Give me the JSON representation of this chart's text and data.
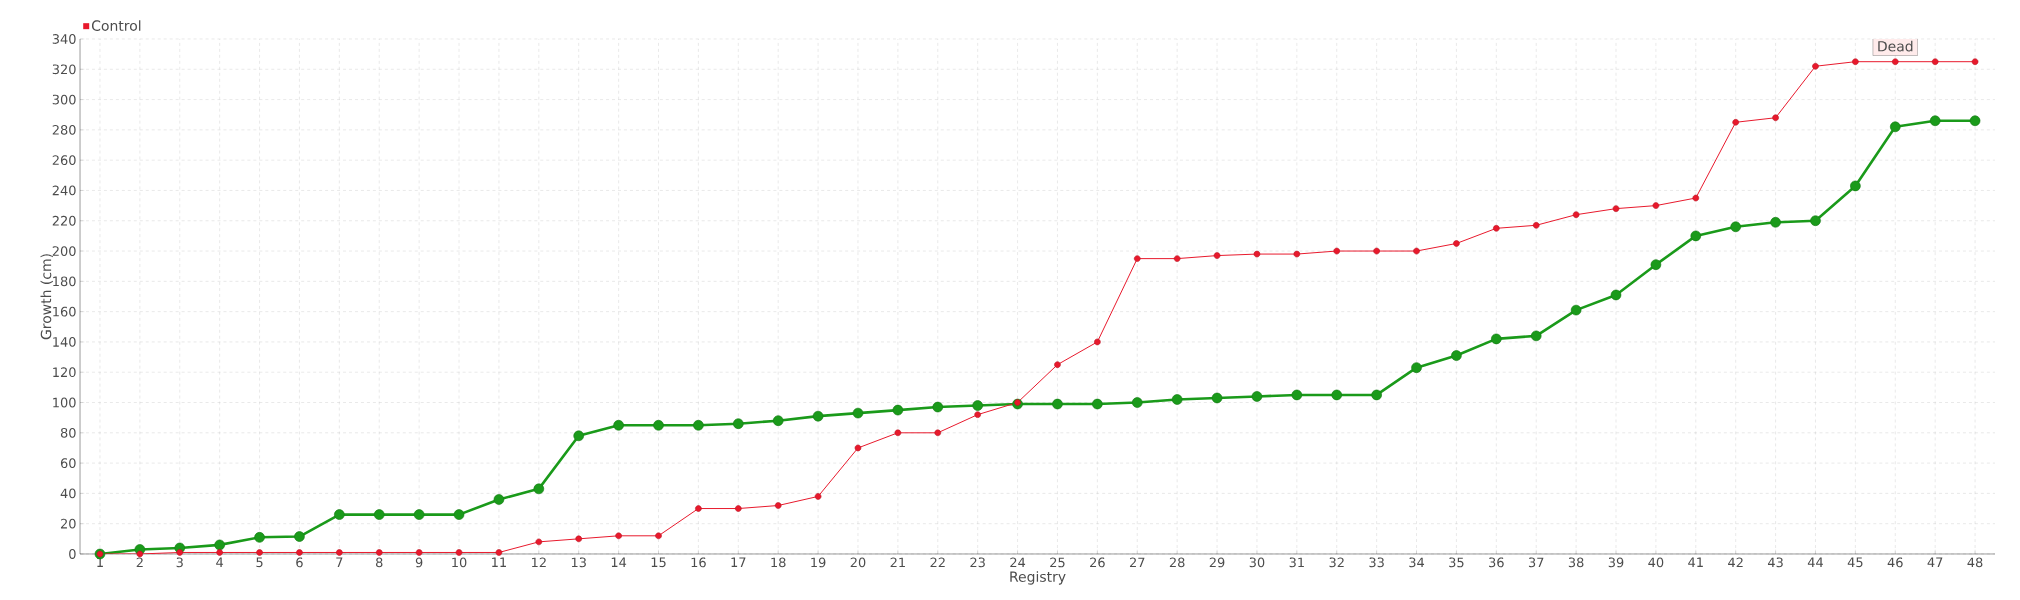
{
  "chart_data": {
    "type": "line",
    "xlabel": "Registry",
    "ylabel": "Growth (cm)",
    "categories": [
      "1",
      "2",
      "3",
      "4",
      "5",
      "6",
      "7",
      "8",
      "9",
      "10",
      "11",
      "12",
      "13",
      "14",
      "15",
      "16",
      "17",
      "18",
      "19",
      "20",
      "21",
      "22",
      "23",
      "24",
      "25",
      "26",
      "27",
      "28",
      "29",
      "30",
      "31",
      "32",
      "33",
      "34",
      "35",
      "36",
      "37",
      "38",
      "39",
      "40",
      "41",
      "42",
      "43",
      "44",
      "45",
      "46",
      "47",
      "48"
    ],
    "series": [
      {
        "color": "#1a9a1a",
        "values": [
          0,
          3,
          4,
          6,
          11,
          11.5,
          26,
          26,
          26,
          26,
          36,
          43,
          78,
          85,
          85,
          85,
          86,
          88,
          91,
          93,
          95,
          97,
          98,
          99,
          99,
          99,
          100,
          102,
          103,
          104,
          105,
          105,
          105,
          123,
          131,
          142,
          144,
          161,
          171,
          191,
          210,
          216,
          219,
          220,
          243,
          282,
          286,
          286
        ]
      },
      {
        "name": "Control",
        "color": "#e8192c",
        "values": [
          0,
          0,
          1,
          1,
          1,
          1,
          1,
          1,
          1,
          1,
          1,
          8,
          10,
          12,
          12,
          30,
          30,
          32,
          38,
          70,
          80,
          80,
          92,
          100,
          125,
          140,
          195,
          195,
          197,
          198,
          198,
          200,
          200,
          200,
          205,
          215,
          217,
          224,
          228,
          230,
          235,
          285,
          288,
          322,
          325,
          325,
          325,
          325
        ]
      }
    ],
    "ylim": [
      0,
      340
    ],
    "yticks": [
      0,
      20,
      40,
      60,
      80,
      100,
      120,
      140,
      160,
      180,
      200,
      220,
      240,
      260,
      280,
      300,
      320,
      340
    ],
    "annotations": [
      {
        "text": "Dead",
        "x": "46",
        "y": 325
      }
    ],
    "grid": true,
    "legend": "top left",
    "marker": "circle",
    "line_style": "solid"
  }
}
